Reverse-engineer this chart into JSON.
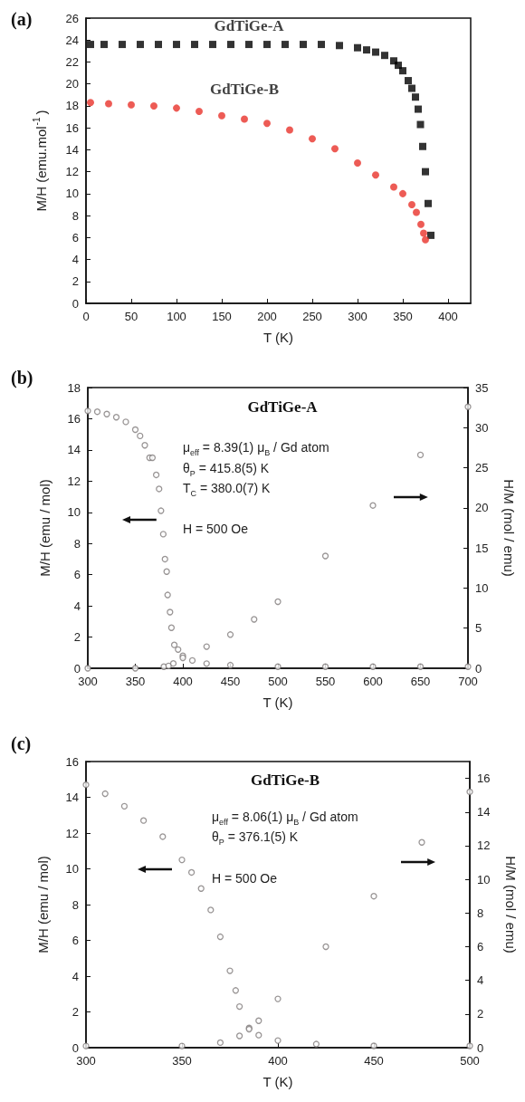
{
  "chart_data": [
    {
      "type": "scatter",
      "xlabel": "T (K)",
      "ylabel": "M/H (emu.mol$^{-1}$)",
      "xlim": [
        0,
        425
      ],
      "xticks": [
        0,
        50,
        100,
        150,
        200,
        250,
        300,
        350,
        400
      ],
      "ylim": [
        0,
        26
      ],
      "yticks": [
        0,
        2,
        4,
        6,
        8,
        10,
        12,
        14,
        16,
        18,
        20,
        22,
        24,
        26
      ],
      "annotations": [
        "(a)"
      ],
      "series": [
        {
          "name": "GdTiGe-A",
          "color": "#000000",
          "marker": "square",
          "x": [
            5,
            20,
            40,
            60,
            80,
            100,
            120,
            140,
            160,
            180,
            200,
            220,
            240,
            260,
            280,
            300,
            310,
            320,
            330,
            340,
            345,
            350,
            356,
            360,
            364,
            367,
            369.5,
            372,
            375,
            378,
            381
          ],
          "values": [
            23.6,
            23.6,
            23.6,
            23.6,
            23.6,
            23.6,
            23.6,
            23.6,
            23.6,
            23.6,
            23.6,
            23.6,
            23.6,
            23.6,
            23.5,
            23.3,
            23.1,
            22.9,
            22.6,
            22.1,
            21.7,
            21.2,
            20.3,
            19.6,
            18.8,
            17.7,
            16.3,
            14.3,
            12.0,
            9.1,
            6.2
          ]
        },
        {
          "name": "GdTiGe-B",
          "color": "#e8322a",
          "marker": "circle",
          "x": [
            5,
            25,
            50,
            75,
            100,
            125,
            150,
            175,
            200,
            225,
            250,
            275,
            300,
            320,
            340,
            350,
            360,
            365,
            370,
            373,
            375
          ],
          "values": [
            18.3,
            18.2,
            18.1,
            18.0,
            17.8,
            17.5,
            17.1,
            16.8,
            16.4,
            15.8,
            15.0,
            14.1,
            12.8,
            11.7,
            10.6,
            10.0,
            9.0,
            8.3,
            7.2,
            6.4,
            5.8
          ]
        }
      ]
    },
    {
      "type": "scatter",
      "title": "GdTiGe-A",
      "xlabel": "T (K)",
      "ylabel": "M/H (emu / mol)",
      "y2label": "H/M (mol / emu)",
      "xlim": [
        300,
        700
      ],
      "xticks": [
        300,
        350,
        400,
        450,
        500,
        550,
        600,
        650,
        700
      ],
      "ylim": [
        0,
        18
      ],
      "yticks": [
        0,
        2,
        4,
        6,
        8,
        10,
        12,
        14,
        16,
        18
      ],
      "y2lim": [
        0,
        35
      ],
      "y2ticks": [
        0,
        5,
        10,
        15,
        20,
        25,
        30,
        35
      ],
      "marker": "circle",
      "annotations": [
        "(b)",
        "μ$_{eff}$ = 8.39(1) μ$_{B}$ / Gd atom",
        "θ$_{P}$ = 415.8(5) K",
        "T$_{C}$ = 380.0(7) K",
        "H = 500 Oe"
      ],
      "series": [
        {
          "color": "#7f7a7a",
          "x": [
            300,
            310,
            320,
            330,
            340,
            350,
            355,
            360,
            365,
            368,
            372,
            375,
            377,
            379.4,
            381.2,
            383,
            384,
            386.5,
            388,
            391,
            395,
            400,
            410,
            425,
            450,
            500,
            550,
            600,
            650,
            700
          ],
          "values": [
            16.5,
            16.45,
            16.3,
            16.1,
            15.8,
            15.3,
            14.9,
            14.3,
            13.5,
            13.5,
            12.4,
            11.5,
            10.1,
            8.6,
            7.0,
            6.2,
            4.7,
            3.6,
            2.6,
            1.5,
            1.2,
            0.8,
            0.5,
            0.3,
            0.2,
            0.1,
            0.1,
            0.1,
            0.1,
            0.1
          ]
        },
        {
          "axis": "y2",
          "color": "#7f7a7a",
          "x": [
            300,
            350,
            380,
            385,
            390,
            400,
            425,
            450,
            475,
            500,
            550,
            600,
            650,
            700
          ],
          "values": [
            0,
            0,
            0.2,
            0.3,
            0.6,
            1.3,
            2.7,
            4.2,
            6.1,
            8.3,
            14.0,
            20.3,
            26.6,
            32.6
          ]
        }
      ]
    },
    {
      "type": "scatter",
      "title": "GdTiGe-B",
      "xlabel": "T (K)",
      "ylabel": "M/H (emu / mol)",
      "y2label": "H/M (mol / emu)",
      "xlim": [
        300,
        500
      ],
      "xticks": [
        300,
        350,
        400,
        450,
        500
      ],
      "ylim": [
        0,
        16
      ],
      "yticks": [
        0,
        2,
        4,
        6,
        8,
        10,
        12,
        14,
        16
      ],
      "y2lim": [
        0,
        17
      ],
      "y2ticks": [
        0,
        2,
        4,
        6,
        8,
        10,
        12,
        14,
        16
      ],
      "marker": "circle",
      "annotations": [
        "(c)",
        "μ$_{eff}$ = 8.06(1) μ$_{B}$ / Gd atom",
        "θ$_{P}$ = 376.1(5) K",
        "H = 500 Oe"
      ],
      "series": [
        {
          "color": "#7f7a7a",
          "x": [
            300,
            310,
            320,
            330,
            340,
            350,
            355,
            360,
            365,
            370,
            375,
            378,
            380,
            385,
            390,
            400,
            420,
            450,
            500
          ],
          "values": [
            14.7,
            14.2,
            13.5,
            12.7,
            11.8,
            10.5,
            9.8,
            8.9,
            7.7,
            6.2,
            4.3,
            3.2,
            2.3,
            1.1,
            0.7,
            0.4,
            0.2,
            0.1,
            0.1
          ]
        },
        {
          "axis": "y2",
          "color": "#7f7a7a",
          "x": [
            300,
            350,
            370,
            380,
            385,
            390,
            400,
            425,
            450,
            475,
            500
          ],
          "values": [
            0.1,
            0.1,
            0.3,
            0.7,
            1.1,
            1.6,
            2.9,
            6.0,
            9.0,
            12.2,
            15.2
          ]
        }
      ]
    }
  ]
}
